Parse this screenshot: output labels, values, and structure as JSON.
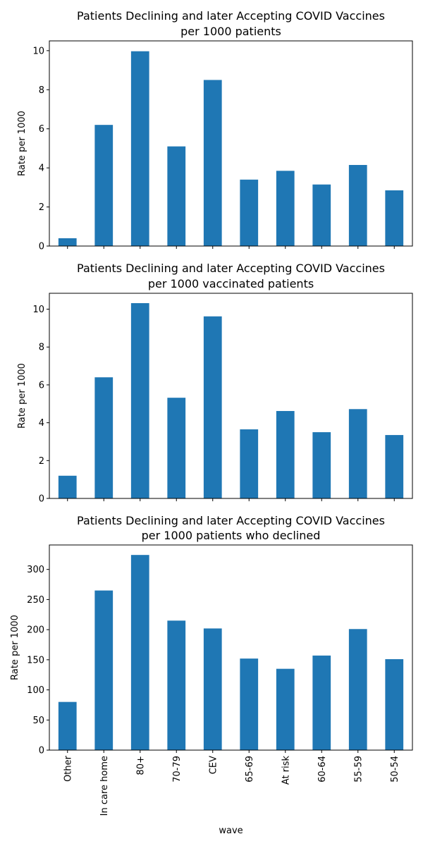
{
  "chart_data": [
    {
      "type": "bar",
      "title": [
        "Patients Declining and later Accepting COVID Vaccines",
        "per 1000 patients"
      ],
      "xlabel": "",
      "ylabel": "Rate per 1000",
      "categories": [
        "Other",
        "In care home",
        "80+",
        "70-79",
        "CEV",
        "65-69",
        "At risk",
        "60-64",
        "55-59",
        "50-54"
      ],
      "values": [
        0.4,
        6.2,
        9.97,
        5.1,
        8.5,
        3.4,
        3.85,
        3.15,
        4.15,
        2.85
      ],
      "ylim": [
        0,
        10.5
      ],
      "yticks": [
        0,
        2,
        4,
        6,
        8,
        10
      ],
      "show_xtick_labels": false,
      "color": "#1f77b4"
    },
    {
      "type": "bar",
      "title": [
        "Patients Declining and later Accepting COVID Vaccines",
        "per 1000 vaccinated patients"
      ],
      "xlabel": "",
      "ylabel": "Rate per 1000",
      "categories": [
        "Other",
        "In care home",
        "80+",
        "70-79",
        "CEV",
        "65-69",
        "At risk",
        "60-64",
        "55-59",
        "50-54"
      ],
      "values": [
        1.2,
        6.4,
        10.32,
        5.32,
        9.62,
        3.65,
        4.62,
        3.5,
        4.72,
        3.35
      ],
      "ylim": [
        0,
        10.84
      ],
      "yticks": [
        0,
        2,
        4,
        6,
        8,
        10
      ],
      "show_xtick_labels": false,
      "color": "#1f77b4"
    },
    {
      "type": "bar",
      "title": [
        "Patients Declining and later Accepting COVID Vaccines",
        "per 1000 patients who declined"
      ],
      "xlabel": "wave",
      "ylabel": "Rate per 1000",
      "categories": [
        "Other",
        "In care home",
        "80+",
        "70-79",
        "CEV",
        "65-69",
        "At risk",
        "60-64",
        "55-59",
        "50-54"
      ],
      "values": [
        80,
        265,
        324,
        215,
        202,
        152,
        135,
        157,
        201,
        151
      ],
      "ylim": [
        0,
        340.6
      ],
      "yticks": [
        0,
        50,
        100,
        150,
        200,
        250,
        300
      ],
      "show_xtick_labels": true,
      "color": "#1f77b4"
    }
  ]
}
